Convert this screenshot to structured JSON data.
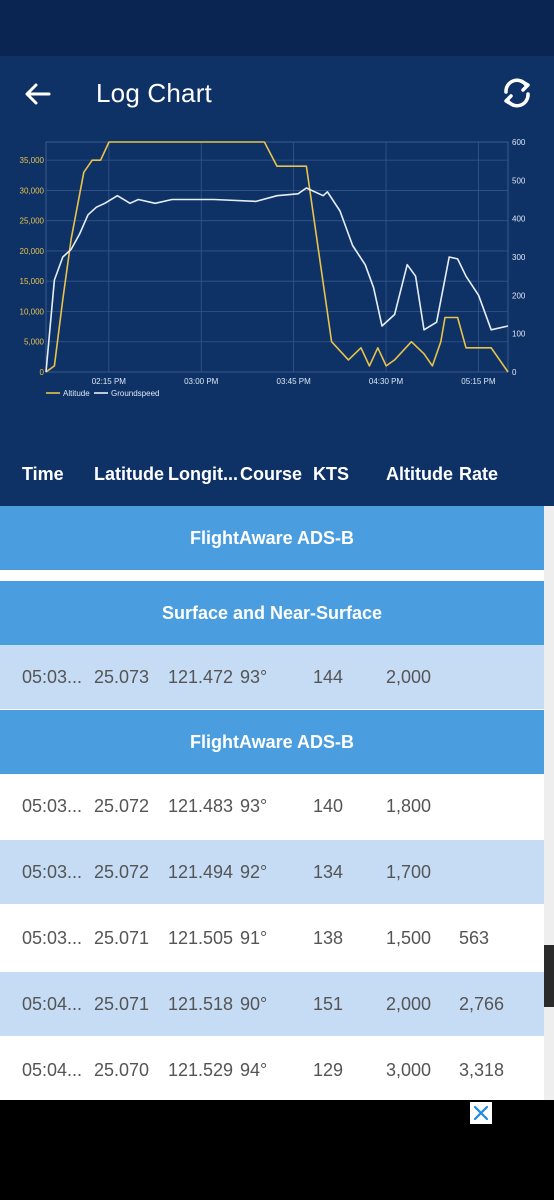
{
  "header": {
    "title": "Log Chart",
    "back_icon": "arrow-left-icon",
    "refresh_icon": "refresh-icon"
  },
  "colors": {
    "header_bg": "#0f3266",
    "status_bg": "#0b2553",
    "altitude_line": "#e8c24a",
    "groundspeed_line": "#e6eef8",
    "section_bg": "#4a9ee0",
    "alt_row_bg": "#c5dcf4"
  },
  "chart_data": {
    "type": "line",
    "x_ticks": [
      "02:15 PM",
      "03:00 PM",
      "03:45 PM",
      "04:30 PM",
      "05:15 PM"
    ],
    "y_left_ticks": [
      "0",
      "5,000",
      "10,000",
      "15,000",
      "20,000",
      "25,000",
      "30,000",
      "35,000"
    ],
    "y_right_ticks": [
      "0",
      "100",
      "200",
      "300",
      "400",
      "500",
      "600"
    ],
    "y_left_range": [
      0,
      38000
    ],
    "y_right_range": [
      0,
      600
    ],
    "grid": true,
    "legend_position": "bottom-left",
    "series": [
      {
        "name": "Altitude",
        "axis": "left",
        "points": [
          [
            0,
            0
          ],
          [
            0.02,
            1000
          ],
          [
            0.04,
            12000
          ],
          [
            0.06,
            22000
          ],
          [
            0.09,
            33000
          ],
          [
            0.11,
            35000
          ],
          [
            0.13,
            35000
          ],
          [
            0.15,
            38000
          ],
          [
            0.52,
            38000
          ],
          [
            0.55,
            34000
          ],
          [
            0.62,
            34000
          ],
          [
            0.68,
            5000
          ],
          [
            0.72,
            2000
          ],
          [
            0.75,
            4000
          ],
          [
            0.77,
            1000
          ],
          [
            0.79,
            4000
          ],
          [
            0.81,
            1000
          ],
          [
            0.83,
            2000
          ],
          [
            0.87,
            5000
          ],
          [
            0.9,
            3000
          ],
          [
            0.92,
            1000
          ],
          [
            0.94,
            5000
          ],
          [
            0.95,
            9000
          ],
          [
            0.98,
            9000
          ],
          [
            1.0,
            4000
          ],
          [
            1.06,
            4000
          ],
          [
            1.1,
            0
          ]
        ]
      },
      {
        "name": "Groundspeed",
        "axis": "right",
        "points": [
          [
            0,
            0
          ],
          [
            0.02,
            240
          ],
          [
            0.04,
            300
          ],
          [
            0.06,
            320
          ],
          [
            0.08,
            360
          ],
          [
            0.1,
            410
          ],
          [
            0.12,
            430
          ],
          [
            0.14,
            440
          ],
          [
            0.17,
            460
          ],
          [
            0.2,
            440
          ],
          [
            0.22,
            450
          ],
          [
            0.26,
            440
          ],
          [
            0.3,
            450
          ],
          [
            0.4,
            450
          ],
          [
            0.5,
            445
          ],
          [
            0.55,
            460
          ],
          [
            0.6,
            465
          ],
          [
            0.62,
            480
          ],
          [
            0.66,
            460
          ],
          [
            0.67,
            470
          ],
          [
            0.7,
            420
          ],
          [
            0.73,
            330
          ],
          [
            0.76,
            280
          ],
          [
            0.78,
            220
          ],
          [
            0.8,
            120
          ],
          [
            0.83,
            150
          ],
          [
            0.86,
            280
          ],
          [
            0.88,
            250
          ],
          [
            0.9,
            110
          ],
          [
            0.93,
            130
          ],
          [
            0.96,
            300
          ],
          [
            0.98,
            295
          ],
          [
            1.0,
            250
          ],
          [
            1.03,
            200
          ],
          [
            1.06,
            110
          ],
          [
            1.1,
            120
          ]
        ]
      }
    ]
  },
  "legend": {
    "altitude": "Altitude",
    "groundspeed": "Groundspeed"
  },
  "table": {
    "columns": [
      "Time",
      "Latitude",
      "Longit...",
      "Course",
      "KTS",
      "Altitude",
      "Rate"
    ],
    "rows": [
      {
        "type": "section",
        "label": "FlightAware ADS-B"
      },
      {
        "type": "section",
        "label": "Surface and Near-Surface"
      },
      {
        "type": "data",
        "time": "05:03...",
        "lat": "25.073",
        "lon": "121.472",
        "course": "93°",
        "kts": "144",
        "alt": "2,000",
        "rate": ""
      },
      {
        "type": "section",
        "label": "FlightAware ADS-B"
      },
      {
        "type": "data",
        "time": "05:03...",
        "lat": "25.072",
        "lon": "121.483",
        "course": "93°",
        "kts": "140",
        "alt": "1,800",
        "rate": ""
      },
      {
        "type": "data",
        "time": "05:03...",
        "lat": "25.072",
        "lon": "121.494",
        "course": "92°",
        "kts": "134",
        "alt": "1,700",
        "rate": ""
      },
      {
        "type": "data",
        "time": "05:03...",
        "lat": "25.071",
        "lon": "121.505",
        "course": "91°",
        "kts": "138",
        "alt": "1,500",
        "rate": "563"
      },
      {
        "type": "data",
        "time": "05:04...",
        "lat": "25.071",
        "lon": "121.518",
        "course": "90°",
        "kts": "151",
        "alt": "2,000",
        "rate": "2,766"
      },
      {
        "type": "data",
        "time": "05:04...",
        "lat": "25.070",
        "lon": "121.529",
        "course": "94°",
        "kts": "129",
        "alt": "3,000",
        "rate": "3,318"
      }
    ]
  },
  "ad": {
    "close_icon": "close-icon"
  }
}
